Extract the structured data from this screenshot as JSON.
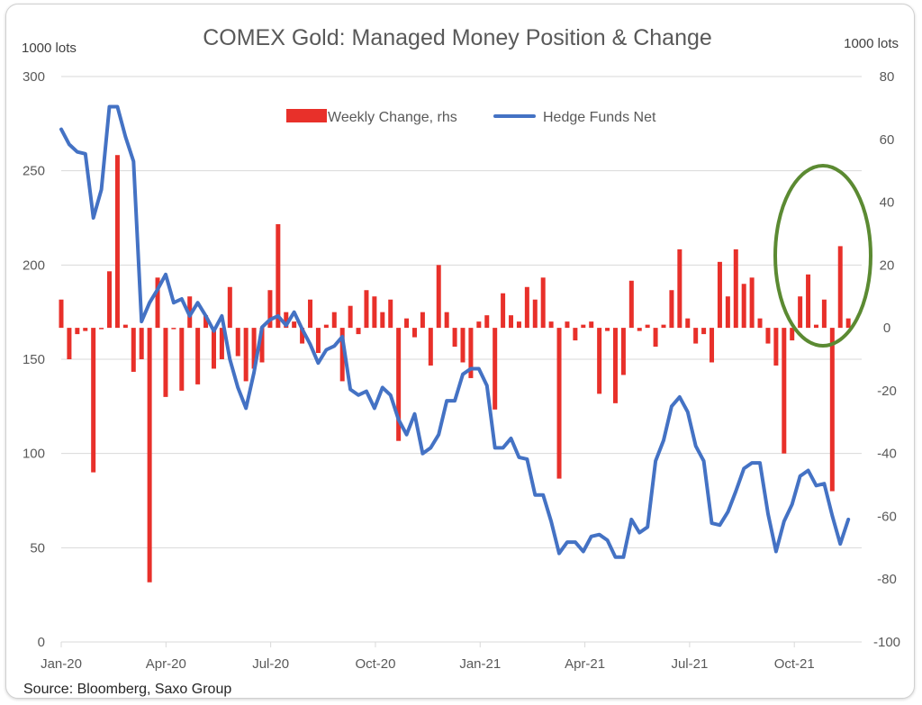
{
  "chart_data": {
    "type": "bar+line",
    "title": "COMEX Gold: Managed Money Position & Change",
    "left_axis": {
      "label": "1000 lots",
      "range": [
        0,
        300
      ],
      "ticks": [
        0,
        50,
        100,
        150,
        200,
        250,
        300
      ]
    },
    "right_axis": {
      "label": "1000 lots",
      "range": [
        -100,
        80
      ],
      "ticks": [
        -100,
        -80,
        -60,
        -40,
        -20,
        0,
        20,
        40,
        60,
        80
      ]
    },
    "x_ticks": [
      "Jan-20",
      "Apr-20",
      "Jul-20",
      "Oct-20",
      "Jan-21",
      "Apr-21",
      "Jul-21",
      "Oct-21"
    ],
    "grid": true,
    "legend_position": "top-center",
    "source": "Source: Bloomberg, Saxo Group",
    "annotation": "green ellipse highlighting recent weekly increases (Oct-Nov 2021)",
    "series": [
      {
        "name": "Weekly Change, rhs",
        "type": "bar",
        "axis": "right",
        "color": "#e8302a",
        "values": [
          9,
          -10,
          -2,
          -1,
          -46,
          0,
          18,
          55,
          1,
          -14,
          -10,
          -81,
          16,
          -22,
          0,
          -20,
          10,
          -18,
          4,
          -13,
          -10,
          13,
          -9,
          -17,
          -13,
          -11,
          12,
          33,
          5,
          2,
          -5,
          9,
          -8,
          1,
          5,
          -17,
          7,
          -2,
          12,
          10,
          5,
          9,
          -36,
          3,
          -3,
          5,
          -12,
          20,
          5,
          -6,
          -11,
          -16,
          2,
          4,
          -26,
          11,
          4,
          2,
          13,
          9,
          16,
          2,
          -48,
          2,
          -4,
          1,
          2,
          -21,
          -1,
          -24,
          -15,
          15,
          -1,
          1,
          -6,
          1,
          12,
          25,
          3,
          -5,
          -2,
          -11,
          21,
          10,
          25,
          14,
          16,
          3,
          -5,
          -12,
          -40,
          -4,
          10,
          17,
          1,
          9,
          -52,
          26,
          3
        ]
      },
      {
        "name": "Hedge Funds Net",
        "type": "line",
        "axis": "left",
        "color": "#4472c4",
        "values": [
          272,
          264,
          260,
          259,
          225,
          240,
          284,
          284,
          268,
          255,
          170,
          180,
          187,
          195,
          180,
          182,
          173,
          180,
          173,
          165,
          173,
          150,
          135,
          124,
          143,
          167,
          171,
          173,
          168,
          175,
          166,
          158,
          148,
          155,
          157,
          162,
          134,
          131,
          133,
          124,
          135,
          131,
          118,
          110,
          121,
          100,
          103,
          110,
          128,
          128,
          142,
          145,
          145,
          136,
          103,
          103,
          108,
          98,
          97,
          78,
          78,
          64,
          47,
          53,
          53,
          48,
          56,
          57,
          54,
          45,
          45,
          65,
          58,
          61,
          96,
          107,
          125,
          130,
          122,
          104,
          96,
          63,
          62,
          69,
          80,
          92,
          95,
          95,
          68,
          48,
          64,
          73,
          88,
          91,
          83,
          84,
          67,
          52,
          65
        ]
      }
    ]
  }
}
